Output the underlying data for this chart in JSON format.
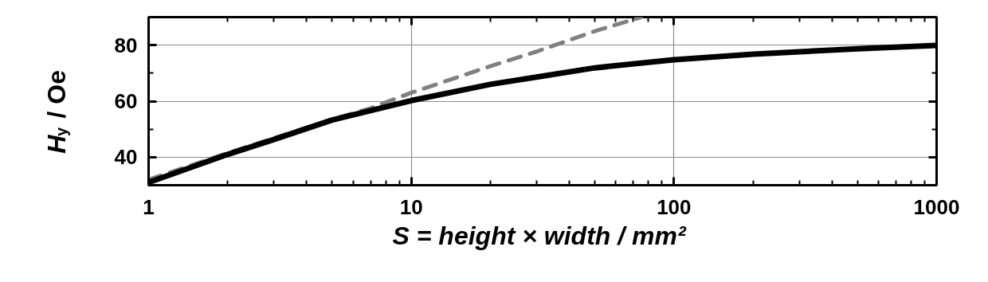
{
  "chart_data": {
    "type": "line",
    "xlabel": "S = height × width  / mm²",
    "ylabel": "H$_{y}$ / Oe",
    "log": "x",
    "grid": true,
    "xlim": [
      1,
      1000
    ],
    "xticks": [
      1,
      10,
      100,
      1000
    ],
    "ylim": [
      30,
      90
    ],
    "yticks": [
      40,
      60,
      80
    ],
    "series": [
      {
        "color": "#808080",
        "line_style": "dashed",
        "x": [
          1,
          2,
          3,
          5,
          7,
          10,
          20,
          30,
          50,
          75
        ],
        "values": [
          32,
          41.5,
          46.8,
          53.5,
          57.5,
          63,
          72.5,
          77.7,
          85,
          90
        ]
      },
      {
        "color": "#000000",
        "line_style": "solid",
        "x": [
          1,
          2,
          3,
          5,
          10,
          20,
          31,
          50,
          100,
          200,
          500,
          1000
        ],
        "values": [
          31,
          41,
          46.3,
          53.3,
          60.2,
          66,
          68.8,
          71.9,
          74.8,
          76.8,
          78.7,
          79.9
        ]
      }
    ]
  }
}
